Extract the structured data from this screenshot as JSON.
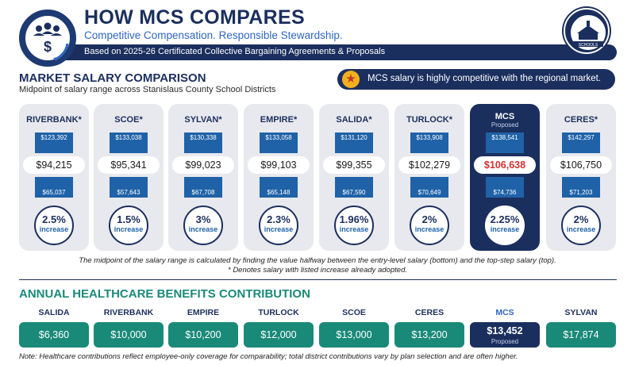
{
  "header": {
    "title": "HOW MCS COMPARES",
    "subtitle": "Competitive Compensation. Responsible Stewardship.",
    "band_text": "Based on 2025-26 Certificated Collective Bargaining Agreements & Proposals",
    "icon": "people-dollar-icon",
    "seal_text": "SCHOOLS",
    "seal_icon": "district-seal-icon"
  },
  "market": {
    "title": "MARKET SALARY COMPARISON",
    "subtitle": "Midpoint of salary range across Stanislaus County School Districts",
    "callout": "MCS salary is highly competitive with the regional market.",
    "callout_icon": "star-icon",
    "increase_word": "increase",
    "districts": [
      {
        "name": "RIVERBANK*",
        "top": "$123,392",
        "mid": "$94,215",
        "low": "$65,037",
        "pct": "2.5%"
      },
      {
        "name": "SCOE*",
        "top": "$133,038",
        "mid": "$95,341",
        "low": "$57,643",
        "pct": "1.5%"
      },
      {
        "name": "SYLVAN*",
        "top": "$130,338",
        "mid": "$99,023",
        "low": "$67,708",
        "pct": "3%"
      },
      {
        "name": "EMPIRE*",
        "top": "$133,058",
        "mid": "$99,103",
        "low": "$65,148",
        "pct": "2.3%"
      },
      {
        "name": "SALIDA*",
        "top": "$131,120",
        "mid": "$99,355",
        "low": "$67,590",
        "pct": "1.96%"
      },
      {
        "name": "TURLOCK*",
        "top": "$133,908",
        "mid": "$102,279",
        "low": "$70,649",
        "pct": "2%"
      },
      {
        "name": "MCS",
        "tag": "Proposed",
        "top": "$138,541",
        "mid": "$106,638",
        "low": "$74,736",
        "pct": "2.25%"
      },
      {
        "name": "CERES*",
        "top": "$142,297",
        "mid": "$106,750",
        "low": "$71,203",
        "pct": "2%"
      }
    ],
    "note_midpoint": "The midpoint of the salary range is calculated by finding the value halfway between the entry-level salary (bottom) and the top-step salary (top).",
    "note_asterisk": "* Denotes salary with listed increase already adopted."
  },
  "healthcare": {
    "title": "ANNUAL HEALTHCARE BENEFITS CONTRIBUTION",
    "districts": [
      {
        "name": "SALIDA",
        "value": "$6,360"
      },
      {
        "name": "RIVERBANK",
        "value": "$10,000"
      },
      {
        "name": "EMPIRE",
        "value": "$10,200"
      },
      {
        "name": "TURLOCK",
        "value": "$12,000"
      },
      {
        "name": "SCOE",
        "value": "$13,000"
      },
      {
        "name": "CERES",
        "value": "$13,200"
      },
      {
        "name": "MCS",
        "value": "$13,452",
        "tag": "Proposed"
      },
      {
        "name": "SYLVAN",
        "value": "$17,874"
      }
    ],
    "note": "Note: Healthcare contributions reflect employee-only coverage for comparability; total district contributions vary by plan selection and are often higher."
  },
  "colors": {
    "navy": "#1b2f5e",
    "blue": "#1f62a8",
    "teal": "#1a8a78",
    "highlight_red": "#d32f2f",
    "gold": "#f2b01e"
  }
}
